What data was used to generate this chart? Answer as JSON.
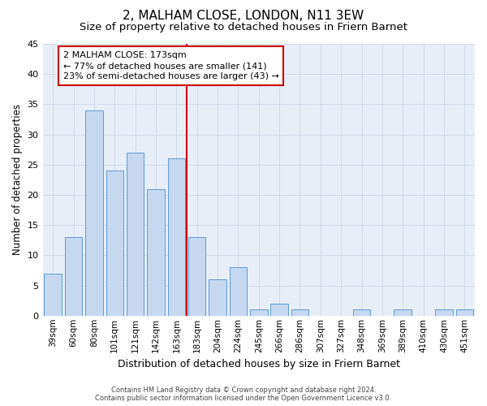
{
  "title": "2, MALHAM CLOSE, LONDON, N11 3EW",
  "subtitle": "Size of property relative to detached houses in Friern Barnet",
  "xlabel": "Distribution of detached houses by size in Friern Barnet",
  "ylabel": "Number of detached properties",
  "categories": [
    "39sqm",
    "60sqm",
    "80sqm",
    "101sqm",
    "121sqm",
    "142sqm",
    "163sqm",
    "183sqm",
    "204sqm",
    "224sqm",
    "245sqm",
    "266sqm",
    "286sqm",
    "307sqm",
    "327sqm",
    "348sqm",
    "369sqm",
    "389sqm",
    "410sqm",
    "430sqm",
    "451sqm"
  ],
  "values": [
    7,
    13,
    34,
    24,
    27,
    21,
    26,
    13,
    6,
    8,
    1,
    2,
    1,
    0,
    0,
    1,
    0,
    1,
    0,
    1,
    1
  ],
  "bar_color": "#c5d8f0",
  "bar_edge_color": "#5b9bd5",
  "grid_color": "#d0d8e8",
  "background_color": "#e8eef8",
  "marker_index": 7,
  "annotation_line1": "2 MALHAM CLOSE: 173sqm",
  "annotation_line2": "← 77% of detached houses are smaller (141)",
  "annotation_line3": "23% of semi-detached houses are larger (43) →",
  "annotation_box_color": "#ffffff",
  "annotation_border_color": "#cc0000",
  "marker_line_color": "#cc0000",
  "footer_line1": "Contains HM Land Registry data © Crown copyright and database right 2024.",
  "footer_line2": "Contains public sector information licensed under the Open Government Licence v3.0.",
  "ylim": [
    0,
    45
  ],
  "title_fontsize": 11,
  "subtitle_fontsize": 9.5,
  "tick_fontsize": 7.5,
  "ylabel_fontsize": 8.5,
  "xlabel_fontsize": 9,
  "annotation_fontsize": 8,
  "footer_fontsize": 6
}
